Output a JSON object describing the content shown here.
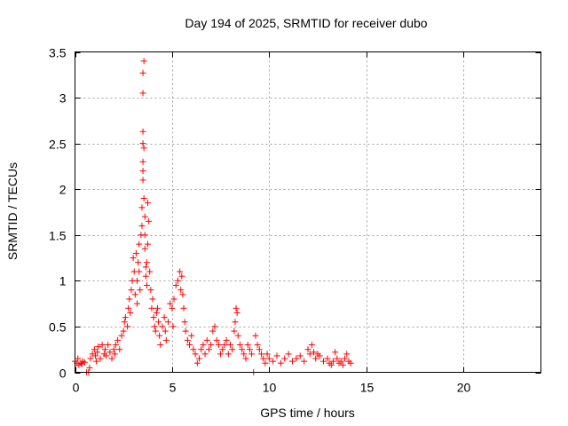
{
  "chart_data": {
    "type": "scatter",
    "title": "Day 194 of 2025, SRMTID for receiver dubo",
    "xlabel": "GPS time / hours",
    "ylabel": "SRMTID / TECUs",
    "xlim": [
      0,
      24
    ],
    "ylim": [
      0,
      3.5
    ],
    "xticks": [
      0,
      5,
      10,
      15,
      20
    ],
    "yticks": [
      0,
      0.5,
      1,
      1.5,
      2,
      2.5,
      3,
      3.5
    ],
    "grid": true,
    "marker": "+",
    "color": "#ff0000",
    "series": [
      {
        "name": "SRMTID",
        "x": [
          0.0,
          0.1,
          0.15,
          0.2,
          0.3,
          0.35,
          0.4,
          0.5,
          0.6,
          0.7,
          0.75,
          0.8,
          0.9,
          1.0,
          1.05,
          1.1,
          1.15,
          1.2,
          1.3,
          1.4,
          1.5,
          1.55,
          1.6,
          1.7,
          1.8,
          1.9,
          2.0,
          2.05,
          2.1,
          2.2,
          2.3,
          2.4,
          2.5,
          2.55,
          2.6,
          2.7,
          2.75,
          2.8,
          2.85,
          2.9,
          2.95,
          3.0,
          3.05,
          3.1,
          3.15,
          3.2,
          3.2,
          3.25,
          3.3,
          3.3,
          3.35,
          3.4,
          3.45,
          3.45,
          3.5,
          3.5,
          3.5,
          3.5,
          3.5,
          3.5,
          3.5,
          3.55,
          3.55,
          3.55,
          3.6,
          3.6,
          3.6,
          3.65,
          3.65,
          3.7,
          3.7,
          3.75,
          3.75,
          3.8,
          3.85,
          3.9,
          3.95,
          4.0,
          4.05,
          4.1,
          4.15,
          4.2,
          4.25,
          4.3,
          4.35,
          4.4,
          4.5,
          4.6,
          4.65,
          4.7,
          4.8,
          4.9,
          5.0,
          5.05,
          5.1,
          5.2,
          5.3,
          5.4,
          5.45,
          5.5,
          5.55,
          5.6,
          5.65,
          5.7,
          5.8,
          5.9,
          6.0,
          6.1,
          6.2,
          6.3,
          6.4,
          6.5,
          6.6,
          6.7,
          6.8,
          6.9,
          7.0,
          7.1,
          7.2,
          7.3,
          7.4,
          7.5,
          7.6,
          7.7,
          7.8,
          7.9,
          8.0,
          8.1,
          8.2,
          8.25,
          8.3,
          8.35,
          8.4,
          8.5,
          8.6,
          8.7,
          8.8,
          8.9,
          9.0,
          9.1,
          9.2,
          9.3,
          9.4,
          9.5,
          9.6,
          9.7,
          9.8,
          9.9,
          10.0,
          10.2,
          10.4,
          10.6,
          10.8,
          11.0,
          11.2,
          11.4,
          11.6,
          11.8,
          12.0,
          12.1,
          12.2,
          12.3,
          12.4,
          12.5,
          12.6,
          12.8,
          13.0,
          13.1,
          13.2,
          13.3,
          13.4,
          13.5,
          13.6,
          13.7,
          13.8,
          13.9,
          14.0,
          14.1,
          14.2
        ],
        "y": [
          0.12,
          0.1,
          0.15,
          0.08,
          0.1,
          0.09,
          0.12,
          0.11,
          0.0,
          0.0,
          0.05,
          0.15,
          0.2,
          0.25,
          0.18,
          0.12,
          0.22,
          0.28,
          0.15,
          0.3,
          0.2,
          0.25,
          0.18,
          0.3,
          0.22,
          0.15,
          0.25,
          0.2,
          0.3,
          0.35,
          0.25,
          0.4,
          0.45,
          0.55,
          0.6,
          0.5,
          0.7,
          0.8,
          0.65,
          0.9,
          1.0,
          1.25,
          1.1,
          0.85,
          1.3,
          1.0,
          0.75,
          1.2,
          1.4,
          1.1,
          0.9,
          1.5,
          1.6,
          1.8,
          2.1,
          2.2,
          2.3,
          2.5,
          2.63,
          3.05,
          3.27,
          3.4,
          2.45,
          1.9,
          1.35,
          1.7,
          1.5,
          1.05,
          1.15,
          0.95,
          1.2,
          1.4,
          1.85,
          1.65,
          1.1,
          0.9,
          0.7,
          0.8,
          0.6,
          0.5,
          0.45,
          0.65,
          0.7,
          0.55,
          0.4,
          0.3,
          0.5,
          0.6,
          0.45,
          0.35,
          0.55,
          0.75,
          0.7,
          0.5,
          0.8,
          0.95,
          1.0,
          1.1,
          0.9,
          1.05,
          0.85,
          0.7,
          0.55,
          0.45,
          0.35,
          0.3,
          0.4,
          0.25,
          0.2,
          0.1,
          0.15,
          0.25,
          0.3,
          0.2,
          0.35,
          0.25,
          0.3,
          0.45,
          0.5,
          0.35,
          0.3,
          0.2,
          0.25,
          0.3,
          0.35,
          0.2,
          0.3,
          0.25,
          0.45,
          0.55,
          0.7,
          0.65,
          0.4,
          0.3,
          0.25,
          0.2,
          0.15,
          0.3,
          0.25,
          0.2,
          0.0,
          0.4,
          0.3,
          0.25,
          0.2,
          0.15,
          0.1,
          0.2,
          0.15,
          0.12,
          0.18,
          0.1,
          0.15,
          0.2,
          0.12,
          0.15,
          0.18,
          0.12,
          0.25,
          0.2,
          0.3,
          0.22,
          0.15,
          0.2,
          0.18,
          0.12,
          0.15,
          0.1,
          0.08,
          0.12,
          0.22,
          0.15,
          0.1,
          0.12,
          0.08,
          0.15,
          0.2,
          0.12,
          0.1
        ]
      }
    ]
  }
}
